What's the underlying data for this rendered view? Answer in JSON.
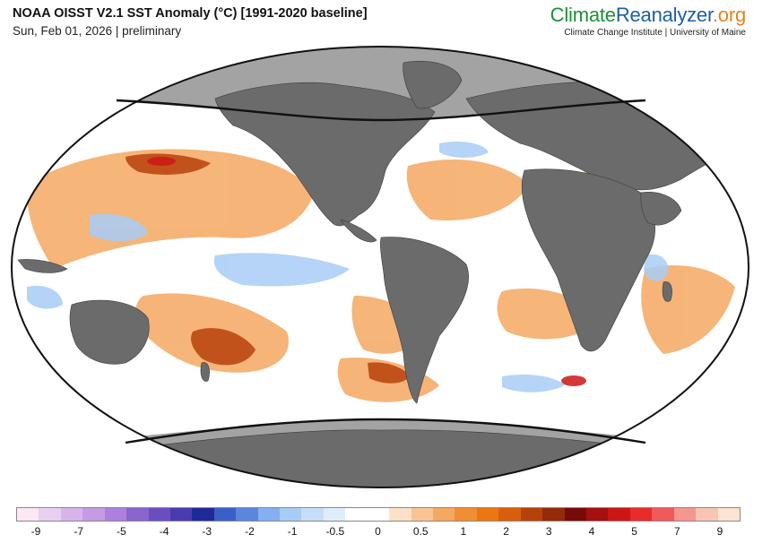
{
  "header": {
    "title": "NOAA OISST V2.1 SST Anomaly (°C) [1991-2020 baseline]",
    "subtitle": "Sun, Feb 01, 2026 | preliminary"
  },
  "brand": {
    "name_part1": "Climate",
    "name_part2": "Reanalyzer",
    "name_part3": ".org",
    "tagline": "Climate Change Institute | University of Maine",
    "colors": {
      "part1": "#1c8f3a",
      "part2": "#1a5fa8",
      "part3": "#e8821e"
    }
  },
  "legend": {
    "ticks": [
      "-9",
      "-7",
      "-5",
      "-4",
      "-3",
      "-2",
      "-1",
      "-0.5",
      "0",
      "0.5",
      "1",
      "2",
      "3",
      "4",
      "5",
      "7",
      "9"
    ],
    "colors": [
      "#fbe8f4",
      "#ead0f0",
      "#d8b4ec",
      "#c79ae6",
      "#ad80de",
      "#8a64cf",
      "#6a4ec0",
      "#4a3cb0",
      "#1f2a9a",
      "#3a5fc8",
      "#5b86dc",
      "#86aff0",
      "#a8ccf6",
      "#c7def9",
      "#dfedfb",
      "#ffffff",
      "#ffffff",
      "#fde1c6",
      "#f9c493",
      "#f5a862",
      "#f18e33",
      "#ec7612",
      "#d95e0c",
      "#b8410a",
      "#952a08",
      "#7a0a0a",
      "#a50f0f",
      "#cc1616",
      "#ea2b2b",
      "#f05a5a",
      "#f79590",
      "#f8c5b4",
      "#fbe4d4"
    ]
  },
  "map": {
    "projection": "Robinson (world)",
    "colors": {
      "land": "#6b6b6b",
      "polar_mask": "#a3a3a3",
      "ocean_neutral": "#ffffff",
      "warm_anomaly": "#f5a862",
      "strong_warm_anomaly": "#952a08",
      "cool_anomaly": "#a8ccf6",
      "outline": "#111111"
    }
  }
}
